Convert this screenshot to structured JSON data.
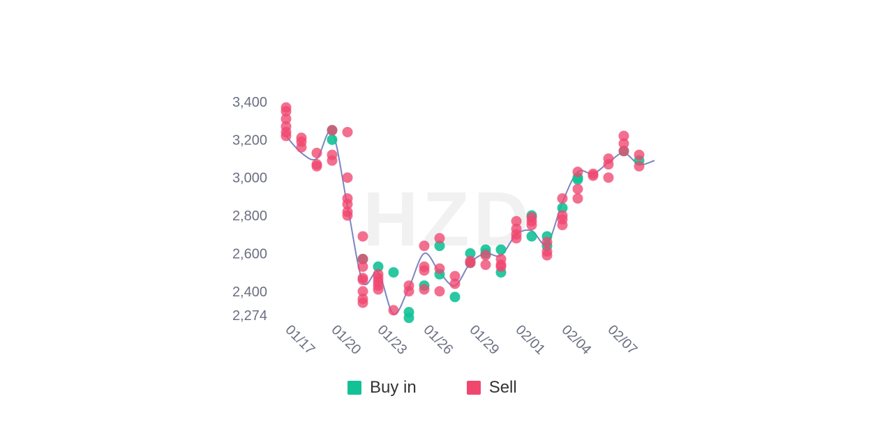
{
  "chart_data": {
    "type": "scatter",
    "watermark": "HZD",
    "colors": {
      "buy": "#12c296",
      "sell": "#f0476f",
      "line": "#7b86c2"
    },
    "yticks": [
      3400,
      3200,
      3000,
      2800,
      2600,
      2400,
      2274
    ],
    "ytick_labels": [
      "3,400",
      "3,200",
      "3,000",
      "2,800",
      "2,600",
      "2,400",
      "2,274"
    ],
    "ylim": [
      2274,
      3400
    ],
    "xlim": [
      0,
      24
    ],
    "xticks": [
      0,
      3,
      6,
      9,
      12,
      15,
      18,
      21
    ],
    "xtick_labels": [
      "01/17",
      "01/20",
      "01/23",
      "01/26",
      "01/29",
      "02/01",
      "02/04",
      "02/07"
    ],
    "trend_line": {
      "x": [
        0,
        1,
        2,
        3,
        4,
        5,
        6,
        7,
        8,
        9,
        10,
        11,
        12,
        13,
        14,
        15,
        16,
        17,
        18,
        19,
        20,
        21,
        22,
        23,
        24
      ],
      "y": [
        3220,
        3130,
        3100,
        3240,
        2850,
        2450,
        2500,
        2280,
        2420,
        2600,
        2500,
        2430,
        2550,
        2600,
        2590,
        2700,
        2720,
        2650,
        2870,
        3030,
        3020,
        3080,
        3130,
        3070,
        3090
      ]
    },
    "series": [
      {
        "name": "Buy in",
        "points": [
          [
            3,
            3200
          ],
          [
            3,
            3250
          ],
          [
            5,
            2570
          ],
          [
            6,
            2530
          ],
          [
            7,
            2500
          ],
          [
            8,
            2260
          ],
          [
            8,
            2290
          ],
          [
            9,
            2430
          ],
          [
            10,
            2640
          ],
          [
            10,
            2490
          ],
          [
            11,
            2370
          ],
          [
            12,
            2600
          ],
          [
            12,
            2550
          ],
          [
            13,
            2600
          ],
          [
            13,
            2620
          ],
          [
            14,
            2500
          ],
          [
            14,
            2620
          ],
          [
            16,
            2800
          ],
          [
            16,
            2690
          ],
          [
            17,
            2690
          ],
          [
            17,
            2640
          ],
          [
            18,
            2840
          ],
          [
            19,
            3000
          ],
          [
            19,
            2990
          ],
          [
            22,
            3140
          ],
          [
            23,
            3090
          ]
        ]
      },
      {
        "name": "Sell",
        "points": [
          [
            0,
            3370
          ],
          [
            0,
            3350
          ],
          [
            0,
            3310
          ],
          [
            0,
            3270
          ],
          [
            0,
            3240
          ],
          [
            0,
            3220
          ],
          [
            1,
            3210
          ],
          [
            1,
            3190
          ],
          [
            1,
            3160
          ],
          [
            2,
            3130
          ],
          [
            2,
            3070
          ],
          [
            2,
            3060
          ],
          [
            3,
            3120
          ],
          [
            3,
            3090
          ],
          [
            3,
            3250
          ],
          [
            4,
            3240
          ],
          [
            4,
            3000
          ],
          [
            4,
            2890
          ],
          [
            4,
            2860
          ],
          [
            4,
            2820
          ],
          [
            4,
            2800
          ],
          [
            5,
            2690
          ],
          [
            5,
            2570
          ],
          [
            5,
            2530
          ],
          [
            5,
            2470
          ],
          [
            5,
            2460
          ],
          [
            5,
            2400
          ],
          [
            5,
            2360
          ],
          [
            5,
            2340
          ],
          [
            6,
            2490
          ],
          [
            6,
            2470
          ],
          [
            6,
            2450
          ],
          [
            6,
            2430
          ],
          [
            6,
            2410
          ],
          [
            7,
            2300
          ],
          [
            8,
            2430
          ],
          [
            8,
            2400
          ],
          [
            9,
            2640
          ],
          [
            9,
            2530
          ],
          [
            9,
            2510
          ],
          [
            9,
            2410
          ],
          [
            10,
            2680
          ],
          [
            10,
            2520
          ],
          [
            10,
            2400
          ],
          [
            11,
            2480
          ],
          [
            11,
            2440
          ],
          [
            12,
            2550
          ],
          [
            12,
            2560
          ],
          [
            13,
            2590
          ],
          [
            13,
            2540
          ],
          [
            14,
            2570
          ],
          [
            14,
            2540
          ],
          [
            14,
            2530
          ],
          [
            15,
            2770
          ],
          [
            15,
            2730
          ],
          [
            15,
            2700
          ],
          [
            15,
            2680
          ],
          [
            16,
            2790
          ],
          [
            16,
            2770
          ],
          [
            16,
            2750
          ],
          [
            17,
            2660
          ],
          [
            17,
            2610
          ],
          [
            17,
            2590
          ],
          [
            18,
            2890
          ],
          [
            18,
            2800
          ],
          [
            18,
            2780
          ],
          [
            18,
            2750
          ],
          [
            19,
            3030
          ],
          [
            19,
            2940
          ],
          [
            19,
            2890
          ],
          [
            20,
            3020
          ],
          [
            20,
            3010
          ],
          [
            21,
            3100
          ],
          [
            21,
            3070
          ],
          [
            21,
            3000
          ],
          [
            22,
            3220
          ],
          [
            22,
            3180
          ],
          [
            22,
            3140
          ],
          [
            23,
            3120
          ],
          [
            23,
            3060
          ]
        ]
      }
    ],
    "legend": [
      {
        "label": "Buy in",
        "color": "#12c296"
      },
      {
        "label": "Sell",
        "color": "#f0476f"
      }
    ],
    "legend_position": "bottom-center",
    "grid": false
  }
}
